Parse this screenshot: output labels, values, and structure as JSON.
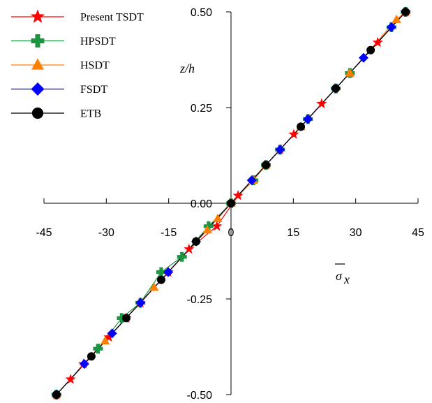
{
  "chart_data": {
    "type": "line",
    "title": "",
    "xlabel": "σ̄x",
    "xlabel_main": "σ",
    "xlabel_sub": "x",
    "ylabel": "z/h",
    "xlim": [
      -45,
      45
    ],
    "ylim": [
      -0.5,
      0.5
    ],
    "x_ticks": [
      -45,
      -30,
      -15,
      0,
      15,
      30,
      45
    ],
    "x_tick_labels": [
      "-45",
      "-30",
      "-15",
      "0",
      "15",
      "30",
      "45"
    ],
    "y_ticks": [
      -0.5,
      -0.25,
      0,
      0.25,
      0.5
    ],
    "y_tick_labels": [
      "-0.50",
      "-0.25",
      "0.00",
      "0.25",
      "0.50"
    ],
    "grid": false,
    "legend_position": "top-left",
    "series": [
      {
        "name": "Present TSDT",
        "color": "#ff0000",
        "marker": "star",
        "x": [
          -42,
          -38.6,
          -35.5,
          -29.4,
          -25.2,
          -21.8,
          -15.1,
          -10.1,
          -3.4,
          1.7,
          8.4,
          11.8,
          15.1,
          21.8,
          28.6,
          35.3,
          42
        ],
        "y": [
          -0.5,
          -0.46,
          -0.42,
          -0.35,
          -0.3,
          -0.26,
          -0.18,
          -0.12,
          -0.06,
          0.02,
          0.1,
          0.14,
          0.18,
          0.26,
          0.34,
          0.42,
          0.5
        ]
      },
      {
        "name": "HPSDT",
        "color": "#1a9641",
        "marker": "plus",
        "x": [
          -42,
          -32,
          -26.3,
          -21.8,
          -16.8,
          -11.8,
          -5.4,
          0,
          5.4,
          8.4,
          11.8,
          18.5,
          25.2,
          28.6,
          38.6,
          42
        ],
        "y": [
          -0.5,
          -0.38,
          -0.3,
          -0.26,
          -0.18,
          -0.14,
          -0.06,
          0,
          0.06,
          0.1,
          0.14,
          0.22,
          0.3,
          0.34,
          0.46,
          0.5
        ]
      },
      {
        "name": "HSDT",
        "color": "#ff8000",
        "marker": "triangle",
        "x": [
          -42,
          -30.3,
          -18.5,
          -5.7,
          -3.2,
          0,
          5.4,
          8.4,
          16.8,
          28.6,
          39.8,
          42
        ],
        "y": [
          -0.5,
          -0.36,
          -0.22,
          -0.07,
          -0.04,
          0,
          0.06,
          0.1,
          0.2,
          0.34,
          0.48,
          0.5
        ]
      },
      {
        "name": "FSDT",
        "color": "#0000ff",
        "marker": "diamond",
        "x": [
          -42,
          -35.3,
          -28.6,
          -21.8,
          -15.1,
          -8.4,
          5,
          11.8,
          18.5,
          25.2,
          31.9,
          38.6,
          42
        ],
        "y": [
          -0.5,
          -0.42,
          -0.34,
          -0.26,
          -0.18,
          -0.1,
          0.06,
          0.14,
          0.22,
          0.3,
          0.38,
          0.46,
          0.5
        ]
      },
      {
        "name": "ETB",
        "color": "#000000",
        "marker": "circle",
        "x": [
          -42,
          -33.6,
          -25.2,
          -16.8,
          -8.4,
          0,
          8.4,
          16.8,
          25.2,
          33.6,
          42
        ],
        "y": [
          -0.5,
          -0.4,
          -0.3,
          -0.2,
          -0.1,
          0,
          0.1,
          0.2,
          0.3,
          0.4,
          0.5
        ]
      }
    ]
  }
}
